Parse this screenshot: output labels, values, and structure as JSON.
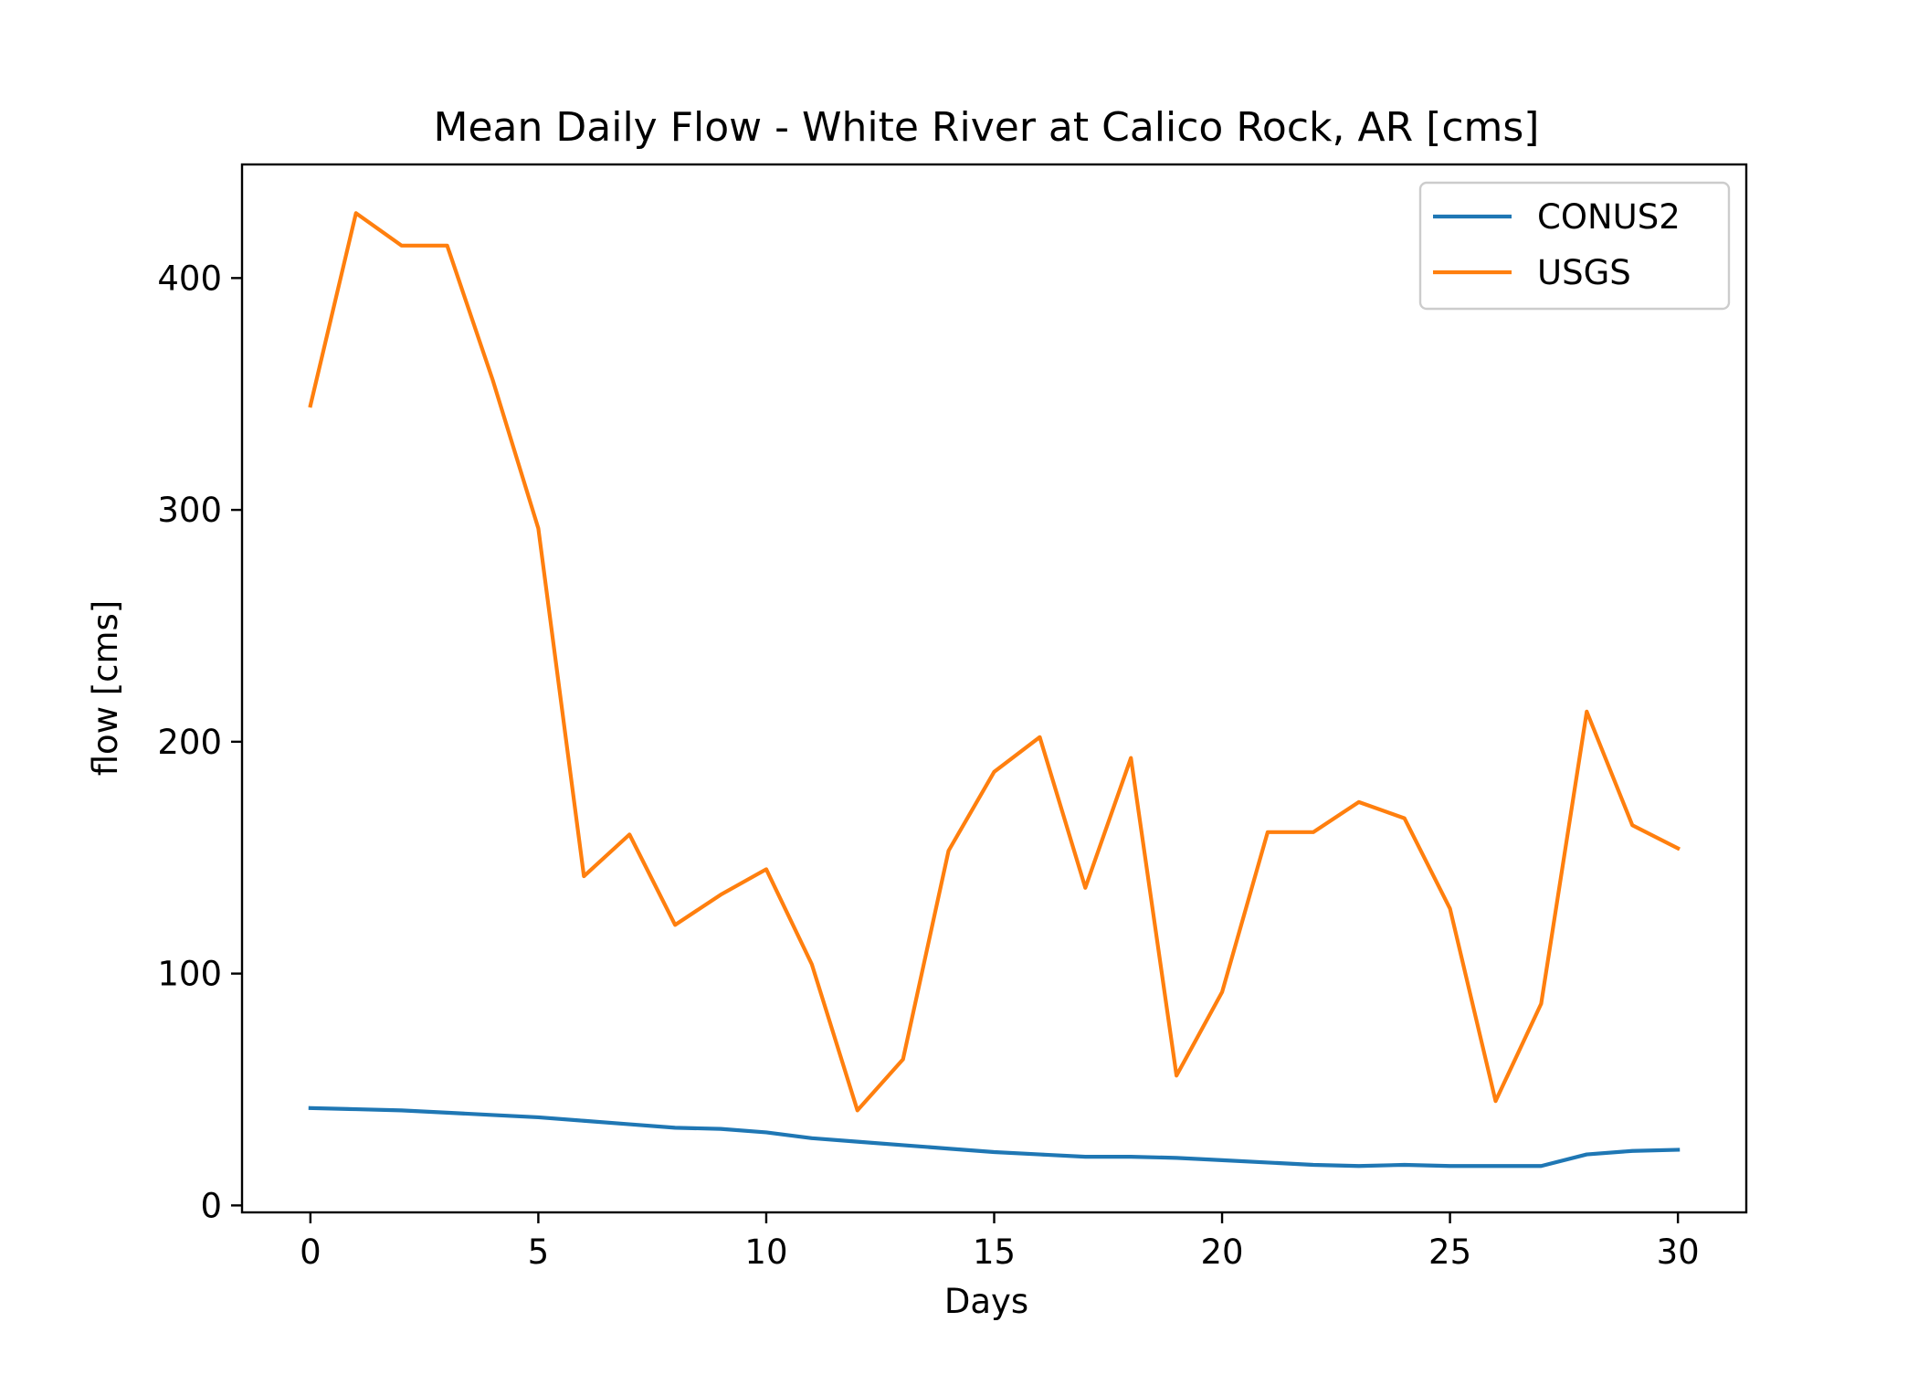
{
  "chart_data": {
    "type": "line",
    "title": "Mean Daily Flow - White River at Calico Rock, AR [cms]",
    "xlabel": "Days",
    "ylabel": "flow [cms]",
    "xlim": [
      -1.5,
      31.5
    ],
    "ylim": [
      -3,
      449
    ],
    "xticks": [
      0,
      5,
      10,
      15,
      20,
      25,
      30
    ],
    "yticks": [
      0,
      100,
      200,
      300,
      400
    ],
    "grid": false,
    "legend_position": "upper right",
    "x": [
      0,
      1,
      2,
      3,
      4,
      5,
      6,
      7,
      8,
      9,
      10,
      11,
      12,
      13,
      14,
      15,
      16,
      17,
      18,
      19,
      20,
      21,
      22,
      23,
      24,
      25,
      26,
      27,
      28,
      29,
      30
    ],
    "series": [
      {
        "name": "CONUS2",
        "color": "#1f77b4",
        "values": [
          42,
          41.5,
          41,
          40,
          39,
          38,
          36.5,
          35,
          33.5,
          33,
          31.5,
          29,
          27.5,
          26,
          24.5,
          23,
          22,
          21,
          21,
          20.5,
          19.5,
          18.5,
          17.5,
          17,
          17.5,
          17,
          17,
          17,
          22,
          23.5,
          24
        ]
      },
      {
        "name": "USGS",
        "color": "#ff7f0e",
        "values": [
          345,
          428,
          414,
          414,
          356,
          292,
          142,
          160,
          121,
          134,
          145,
          104,
          41,
          63,
          153,
          187,
          202,
          137,
          193,
          56,
          92,
          161,
          161,
          174,
          167,
          128,
          45,
          87,
          213,
          164,
          154
        ]
      }
    ]
  }
}
